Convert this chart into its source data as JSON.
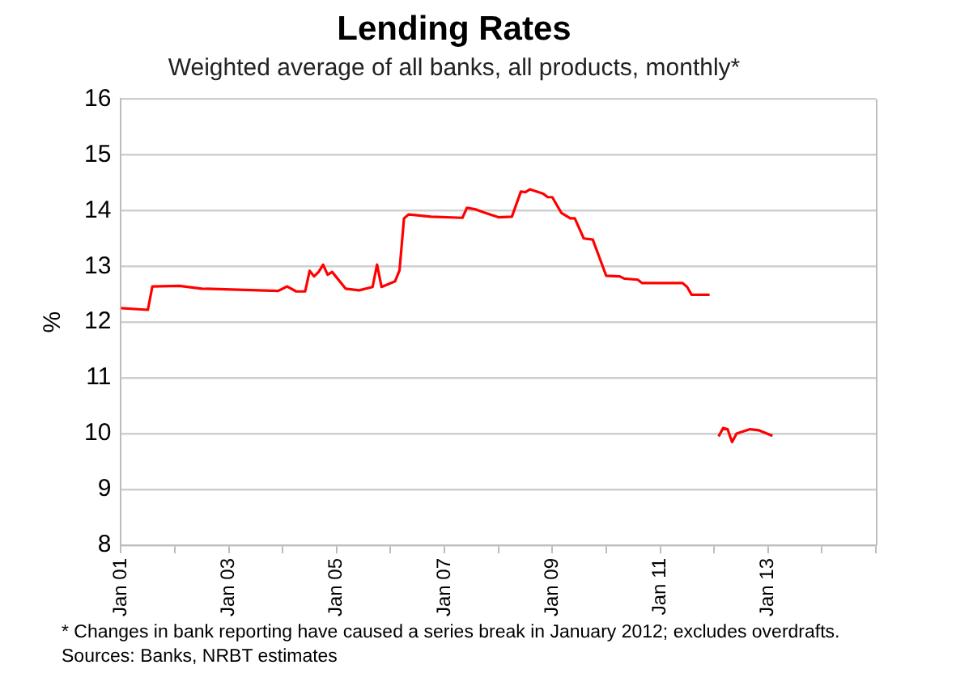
{
  "chart_data": {
    "type": "line",
    "title": "Lending Rates",
    "subtitle": "Weighted average of all banks, all products, monthly*",
    "ylabel": "%",
    "x": [
      "2001-01",
      "2001-07",
      "2001-08",
      "2002-02",
      "2002-07",
      "2003-12",
      "2004-02",
      "2004-04",
      "2004-06",
      "2004-07",
      "2004-08",
      "2004-09",
      "2004-10",
      "2004-11",
      "2004-12",
      "2005-03",
      "2005-06",
      "2005-09",
      "2005-10",
      "2005-11",
      "2006-02",
      "2006-03",
      "2006-04",
      "2006-05",
      "2006-10",
      "2007-05",
      "2007-06",
      "2007-08",
      "2007-10",
      "2008-01",
      "2008-04",
      "2008-06",
      "2008-07",
      "2008-08",
      "2008-11",
      "2008-12",
      "2009-01",
      "2009-03",
      "2009-05",
      "2009-06",
      "2009-08",
      "2009-10",
      "2010-01",
      "2010-04",
      "2010-05",
      "2010-08",
      "2010-09",
      "2011-06",
      "2011-07",
      "2011-08",
      "2011-12",
      "2012-01",
      "2012-02",
      "2012-03",
      "2012-04",
      "2012-05",
      "2012-06",
      "2012-09",
      "2012-11",
      "2013-02"
    ],
    "series": [
      {
        "color": "#ff0000",
        "values": [
          12.25,
          12.22,
          12.64,
          12.65,
          12.6,
          12.56,
          12.64,
          12.55,
          12.55,
          12.92,
          12.82,
          12.9,
          13.03,
          12.85,
          12.9,
          12.6,
          12.57,
          12.63,
          13.03,
          12.63,
          12.73,
          12.93,
          13.86,
          13.93,
          13.89,
          13.87,
          14.05,
          14.02,
          13.96,
          13.88,
          13.89,
          14.34,
          14.33,
          14.38,
          14.3,
          14.24,
          14.24,
          13.96,
          13.86,
          13.86,
          13.5,
          13.48,
          12.83,
          12.82,
          12.78,
          12.76,
          12.7,
          12.7,
          12.63,
          12.49,
          12.49,
          null,
          9.95,
          10.1,
          10.08,
          9.85,
          10.0,
          10.08,
          10.06,
          9.96
        ]
      }
    ],
    "xlim": [
      "2001-01",
      "2015-01"
    ],
    "xticks": [
      {
        "value": "2001-01",
        "label": "Jan 01"
      },
      {
        "value": "2002-01",
        "label": null
      },
      {
        "value": "2003-01",
        "label": "Jan 03"
      },
      {
        "value": "2004-01",
        "label": null
      },
      {
        "value": "2005-01",
        "label": "Jan 05"
      },
      {
        "value": "2006-01",
        "label": null
      },
      {
        "value": "2007-01",
        "label": "Jan 07"
      },
      {
        "value": "2008-01",
        "label": null
      },
      {
        "value": "2009-01",
        "label": "Jan 09"
      },
      {
        "value": "2010-01",
        "label": null
      },
      {
        "value": "2011-01",
        "label": "Jan 11"
      },
      {
        "value": "2012-01",
        "label": null
      },
      {
        "value": "2013-01",
        "label": "Jan 13"
      },
      {
        "value": "2014-01",
        "label": null
      },
      {
        "value": "2015-01",
        "label": null
      }
    ],
    "ylim": [
      8,
      16
    ],
    "yticks": [
      8,
      9,
      10,
      11,
      12,
      13,
      14,
      15,
      16
    ],
    "grid": "y",
    "legend": false,
    "marker": "none",
    "line_style": "solid",
    "annotations": [
      "* Changes in bank reporting have caused a series break in January 2012; excludes overdrafts.",
      "Sources: Banks, NRBT estimates"
    ]
  }
}
